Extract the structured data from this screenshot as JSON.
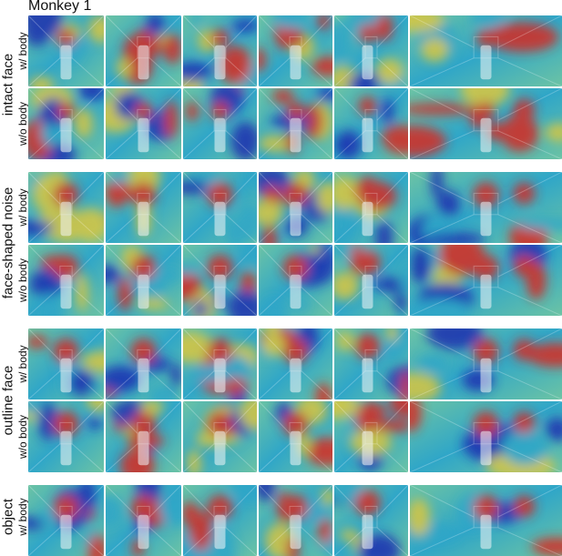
{
  "figure": {
    "title": "Monkey 1"
  },
  "groups": [
    {
      "label": "intact face",
      "rows": [
        {
          "label": "w/ body"
        },
        {
          "label": "w/o body"
        }
      ]
    },
    {
      "label": "face-shaped noise",
      "rows": [
        {
          "label": "w/ body"
        },
        {
          "label": "w/o body"
        }
      ]
    },
    {
      "label": "outline face",
      "rows": [
        {
          "label": "w/ body"
        },
        {
          "label": "w/o body"
        }
      ]
    },
    {
      "label": "object",
      "rows": [
        {
          "label": "w/ body"
        }
      ]
    }
  ],
  "colors": {
    "heat_low": "#1d2fb0",
    "heat_mid_low": "#2fa6c8",
    "heat_mid": "#6cc3a4",
    "heat_mid_high": "#d9c641",
    "heat_high": "#d62a22",
    "background": "#ffffff"
  }
}
